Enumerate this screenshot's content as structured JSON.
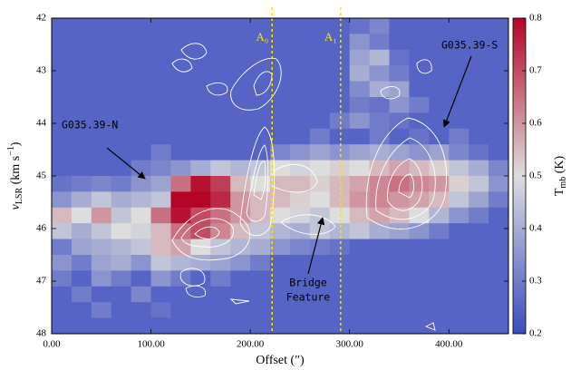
{
  "chart_data": {
    "type": "heatmap",
    "xlabel": "Offset (″)",
    "ylabel": [
      "v",
      "LSR",
      " (km s",
      "−1",
      ")"
    ],
    "clabel": [
      "T",
      "mb",
      " (K)"
    ],
    "xlim": [
      0,
      460
    ],
    "ylim": [
      48,
      42
    ],
    "xticks": [
      {
        "value": 0,
        "label": "0.00"
      },
      {
        "value": 100,
        "label": "100.00"
      },
      {
        "value": 200,
        "label": "200.00"
      },
      {
        "value": 300,
        "label": "300.00"
      },
      {
        "value": 400,
        "label": "400.00"
      }
    ],
    "yticks": [
      42,
      43,
      44,
      45,
      46,
      47,
      48
    ],
    "xbins": [
      0,
      20,
      40,
      60,
      80,
      100,
      120,
      140,
      160,
      180,
      200,
      220,
      240,
      260,
      280,
      300,
      320,
      340,
      360,
      380,
      400,
      420,
      440,
      460
    ],
    "ybins": [
      42,
      42.3,
      42.6,
      42.9,
      43.2,
      43.5,
      43.8,
      44.1,
      44.4,
      44.7,
      45,
      45.3,
      45.6,
      45.9,
      46.2,
      46.5,
      46.8,
      47.1,
      47.4,
      47.7,
      48
    ],
    "colormap": [
      "#3b4cc0",
      "#dddddd",
      "#b40426"
    ],
    "clim": [
      0.2,
      0.8
    ],
    "cticks": [
      0.2,
      0.3,
      0.4,
      0.5,
      0.6,
      0.7,
      0.8
    ],
    "z": [
      [
        0.25,
        0.25,
        0.25,
        0.25,
        0.25,
        0.25,
        0.25,
        0.25,
        0.25,
        0.25,
        0.25,
        0.25,
        0.25,
        0.25,
        0.25,
        0.28,
        0.32,
        0.25,
        0.25,
        0.25,
        0.25,
        0.25,
        0.25
      ],
      [
        0.25,
        0.25,
        0.25,
        0.25,
        0.25,
        0.25,
        0.25,
        0.25,
        0.25,
        0.25,
        0.25,
        0.25,
        0.25,
        0.25,
        0.25,
        0.35,
        0.3,
        0.25,
        0.25,
        0.25,
        0.25,
        0.25,
        0.25
      ],
      [
        0.25,
        0.25,
        0.25,
        0.25,
        0.25,
        0.25,
        0.25,
        0.25,
        0.25,
        0.25,
        0.25,
        0.25,
        0.25,
        0.25,
        0.25,
        0.38,
        0.42,
        0.28,
        0.25,
        0.25,
        0.25,
        0.25,
        0.25
      ],
      [
        0.25,
        0.25,
        0.25,
        0.25,
        0.25,
        0.25,
        0.25,
        0.25,
        0.25,
        0.25,
        0.25,
        0.25,
        0.25,
        0.25,
        0.25,
        0.4,
        0.35,
        0.3,
        0.25,
        0.25,
        0.25,
        0.25,
        0.25
      ],
      [
        0.25,
        0.25,
        0.25,
        0.25,
        0.25,
        0.25,
        0.25,
        0.25,
        0.25,
        0.25,
        0.25,
        0.25,
        0.25,
        0.25,
        0.25,
        0.33,
        0.4,
        0.38,
        0.25,
        0.25,
        0.25,
        0.25,
        0.25
      ],
      [
        0.25,
        0.25,
        0.25,
        0.25,
        0.25,
        0.25,
        0.25,
        0.25,
        0.25,
        0.25,
        0.25,
        0.25,
        0.25,
        0.25,
        0.25,
        0.3,
        0.28,
        0.35,
        0.3,
        0.25,
        0.25,
        0.25,
        0.25
      ],
      [
        0.25,
        0.25,
        0.25,
        0.25,
        0.25,
        0.25,
        0.25,
        0.25,
        0.25,
        0.25,
        0.25,
        0.25,
        0.25,
        0.25,
        0.3,
        0.35,
        0.3,
        0.28,
        0.25,
        0.25,
        0.25,
        0.25,
        0.25
      ],
      [
        0.25,
        0.25,
        0.25,
        0.25,
        0.25,
        0.25,
        0.25,
        0.25,
        0.25,
        0.25,
        0.25,
        0.25,
        0.25,
        0.3,
        0.25,
        0.25,
        0.3,
        0.25,
        0.28,
        0.25,
        0.3,
        0.25,
        0.25
      ],
      [
        0.25,
        0.25,
        0.25,
        0.25,
        0.25,
        0.3,
        0.25,
        0.25,
        0.25,
        0.25,
        0.25,
        0.32,
        0.35,
        0.38,
        0.35,
        0.38,
        0.4,
        0.38,
        0.35,
        0.38,
        0.32,
        0.28,
        0.25
      ],
      [
        0.25,
        0.25,
        0.25,
        0.25,
        0.3,
        0.32,
        0.35,
        0.4,
        0.45,
        0.42,
        0.45,
        0.5,
        0.48,
        0.5,
        0.52,
        0.5,
        0.55,
        0.58,
        0.55,
        0.52,
        0.45,
        0.4,
        0.32
      ],
      [
        0.28,
        0.3,
        0.32,
        0.3,
        0.35,
        0.38,
        0.65,
        0.78,
        0.72,
        0.55,
        0.5,
        0.55,
        0.55,
        0.52,
        0.55,
        0.58,
        0.62,
        0.65,
        0.62,
        0.6,
        0.52,
        0.45,
        0.35
      ],
      [
        0.35,
        0.4,
        0.45,
        0.4,
        0.42,
        0.45,
        0.8,
        0.8,
        0.75,
        0.6,
        0.55,
        0.55,
        0.52,
        0.5,
        0.55,
        0.6,
        0.62,
        0.6,
        0.58,
        0.55,
        0.45,
        0.38,
        0.3
      ],
      [
        0.55,
        0.5,
        0.6,
        0.45,
        0.5,
        0.65,
        0.78,
        0.7,
        0.65,
        0.6,
        0.55,
        0.5,
        0.48,
        0.45,
        0.5,
        0.55,
        0.58,
        0.55,
        0.5,
        0.42,
        0.35,
        0.3,
        0.25
      ],
      [
        0.45,
        0.4,
        0.45,
        0.5,
        0.48,
        0.55,
        0.65,
        0.7,
        0.62,
        0.55,
        0.45,
        0.42,
        0.4,
        0.45,
        0.42,
        0.45,
        0.4,
        0.38,
        0.35,
        0.3,
        0.25,
        0.25,
        0.25
      ],
      [
        0.3,
        0.38,
        0.4,
        0.42,
        0.45,
        0.55,
        0.58,
        0.5,
        0.45,
        0.42,
        0.4,
        0.35,
        0.32,
        0.3,
        0.28,
        0.25,
        0.25,
        0.25,
        0.25,
        0.25,
        0.25,
        0.25,
        0.25
      ],
      [
        0.35,
        0.3,
        0.38,
        0.4,
        0.35,
        0.45,
        0.42,
        0.4,
        0.38,
        0.35,
        0.3,
        0.25,
        0.25,
        0.25,
        0.25,
        0.25,
        0.25,
        0.25,
        0.25,
        0.25,
        0.25,
        0.25,
        0.25
      ],
      [
        0.3,
        0.25,
        0.35,
        0.3,
        0.25,
        0.35,
        0.3,
        0.25,
        0.3,
        0.25,
        0.25,
        0.25,
        0.25,
        0.25,
        0.25,
        0.25,
        0.25,
        0.25,
        0.25,
        0.25,
        0.25,
        0.25,
        0.25
      ],
      [
        0.25,
        0.3,
        0.25,
        0.25,
        0.32,
        0.25,
        0.25,
        0.25,
        0.25,
        0.25,
        0.25,
        0.25,
        0.25,
        0.25,
        0.25,
        0.25,
        0.25,
        0.25,
        0.25,
        0.25,
        0.25,
        0.25,
        0.25
      ],
      [
        0.25,
        0.25,
        0.3,
        0.25,
        0.25,
        0.28,
        0.25,
        0.25,
        0.25,
        0.25,
        0.25,
        0.25,
        0.25,
        0.25,
        0.25,
        0.25,
        0.25,
        0.25,
        0.25,
        0.25,
        0.25,
        0.25,
        0.25
      ],
      [
        0.25,
        0.25,
        0.25,
        0.25,
        0.25,
        0.25,
        0.25,
        0.25,
        0.25,
        0.25,
        0.25,
        0.25,
        0.25,
        0.25,
        0.25,
        0.25,
        0.25,
        0.25,
        0.25,
        0.25,
        0.25,
        0.25,
        0.25
      ]
    ],
    "cuts": [
      {
        "label": "A₀",
        "x": 222,
        "color": "#ffe000"
      },
      {
        "label": "A₁",
        "x": 291,
        "color": "#ffe000"
      }
    ],
    "annotations": [
      "G035.39-N",
      "G035.39-S",
      "Bridge",
      "Feature"
    ]
  }
}
